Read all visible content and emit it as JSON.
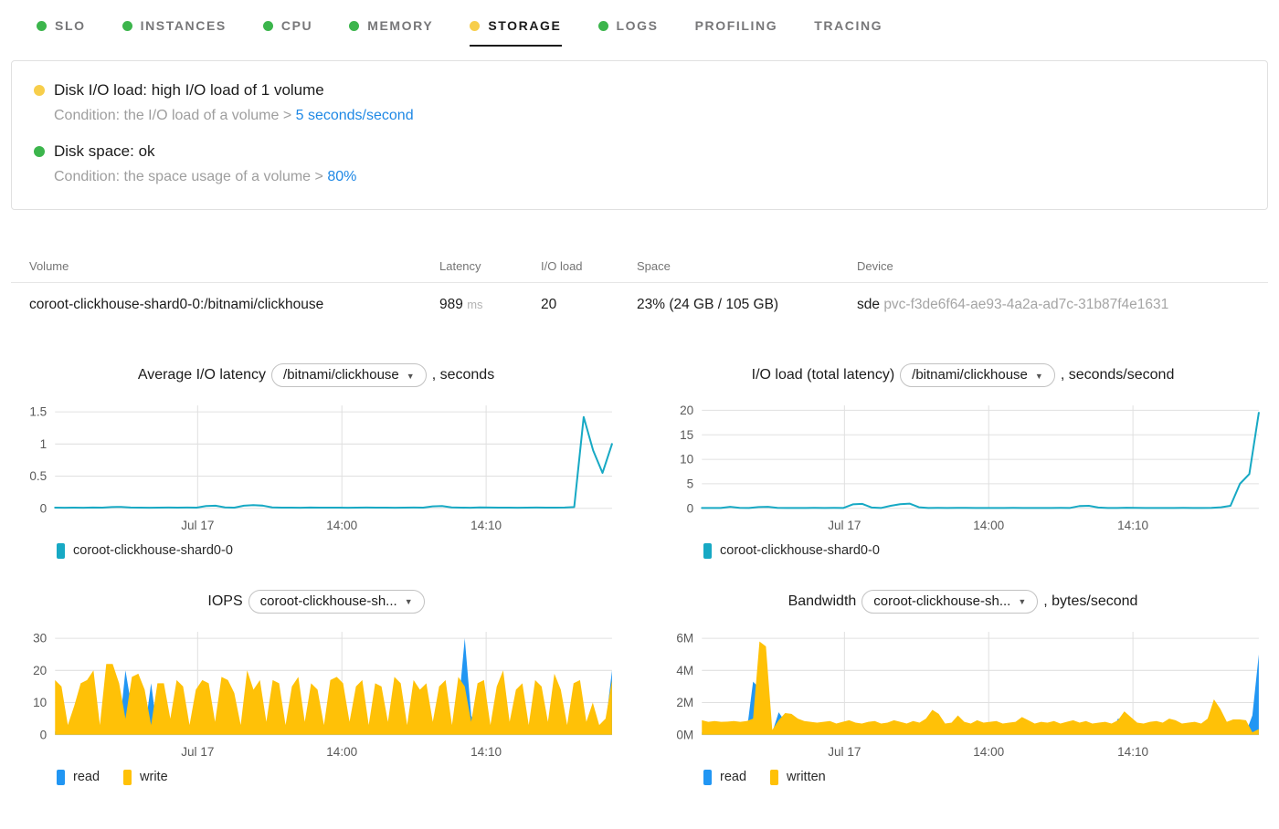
{
  "tabs": {
    "items": [
      {
        "label": "SLO",
        "dot": "#3CB54C",
        "active": false
      },
      {
        "label": "INSTANCES",
        "dot": "#3CB54C",
        "active": false
      },
      {
        "label": "CPU",
        "dot": "#3CB54C",
        "active": false
      },
      {
        "label": "MEMORY",
        "dot": "#3CB54C",
        "active": false
      },
      {
        "label": "STORAGE",
        "dot": "#F7CE4B",
        "active": true
      },
      {
        "label": "LOGS",
        "dot": "#3CB54C",
        "active": false
      },
      {
        "label": "PROFILING",
        "dot": null,
        "active": false
      },
      {
        "label": "TRACING",
        "dot": null,
        "active": false
      }
    ]
  },
  "alerts": {
    "items": [
      {
        "severity_color": "#F7CE4B",
        "title": "Disk I/O load: high I/O load of 1 volume",
        "condition_text": "Condition: the I/O load of a volume >",
        "threshold": "5 seconds/second"
      },
      {
        "severity_color": "#3CB54C",
        "title": "Disk space: ok",
        "condition_text": "Condition: the space usage of a volume >",
        "threshold": "80%"
      }
    ]
  },
  "table": {
    "columns": [
      "Volume",
      "Latency",
      "I/O load",
      "Space",
      "Device"
    ],
    "rows": [
      {
        "volume": "coroot-clickhouse-shard0-0:/bitnami/clickhouse",
        "latency_value": "989",
        "latency_unit": "ms",
        "io_load": "20",
        "space": "23% (24 GB / 105 GB)",
        "device": "sde",
        "device_id": "pvc-f3de6f64-ae93-4a2a-ad7c-31b87f4e1631"
      }
    ]
  },
  "chart_data": [
    {
      "type": "line",
      "title_prefix": "Average I/O latency",
      "selector_value": "/bitnami/clickhouse",
      "title_suffix": ", seconds",
      "ylim": [
        0,
        1.6
      ],
      "y_ticks": [
        {
          "v": 0,
          "label": "0"
        },
        {
          "v": 0.5,
          "label": "0.5"
        },
        {
          "v": 1,
          "label": "1"
        },
        {
          "v": 1.5,
          "label": "1.5"
        }
      ],
      "x_ticks": [
        {
          "pos": 0.256,
          "label": "Jul 17"
        },
        {
          "pos": 0.515,
          "label": "14:00"
        },
        {
          "pos": 0.774,
          "label": "14:10"
        }
      ],
      "grid": true,
      "legend_position": "bottom-left",
      "series": [
        {
          "name": "coroot-clickhouse-shard0-0",
          "kind": "line",
          "color": "#17A9C4",
          "values": [
            0.01,
            0.008,
            0.01,
            0.009,
            0.012,
            0.01,
            0.02,
            0.022,
            0.012,
            0.01,
            0.009,
            0.01,
            0.011,
            0.01,
            0.012,
            0.01,
            0.035,
            0.04,
            0.015,
            0.01,
            0.04,
            0.048,
            0.042,
            0.015,
            0.01,
            0.01,
            0.009,
            0.011,
            0.01,
            0.01,
            0.01,
            0.009,
            0.01,
            0.012,
            0.01,
            0.01,
            0.009,
            0.01,
            0.011,
            0.01,
            0.03,
            0.035,
            0.015,
            0.01,
            0.009,
            0.015,
            0.012,
            0.01,
            0.01,
            0.009,
            0.01,
            0.011,
            0.01,
            0.01,
            0.012,
            0.02,
            1.42,
            0.9,
            0.55,
            1.0
          ]
        }
      ],
      "legend": [
        {
          "label": "coroot-clickhouse-shard0-0",
          "color": "#17A9C4"
        }
      ]
    },
    {
      "type": "line",
      "title_prefix": "I/O load (total latency)",
      "selector_value": "/bitnami/clickhouse",
      "title_suffix": ", seconds/second",
      "ylim": [
        0,
        21
      ],
      "y_ticks": [
        {
          "v": 0,
          "label": "0"
        },
        {
          "v": 5,
          "label": "5"
        },
        {
          "v": 10,
          "label": "10"
        },
        {
          "v": 15,
          "label": "15"
        },
        {
          "v": 20,
          "label": "20"
        }
      ],
      "x_ticks": [
        {
          "pos": 0.256,
          "label": "Jul 17"
        },
        {
          "pos": 0.515,
          "label": "14:00"
        },
        {
          "pos": 0.774,
          "label": "14:10"
        }
      ],
      "grid": true,
      "legend_position": "bottom-left",
      "series": [
        {
          "name": "coroot-clickhouse-shard0-0",
          "kind": "line",
          "color": "#17A9C4",
          "values": [
            0.08,
            0.06,
            0.08,
            0.3,
            0.1,
            0.08,
            0.25,
            0.3,
            0.1,
            0.08,
            0.07,
            0.08,
            0.1,
            0.08,
            0.09,
            0.08,
            0.8,
            0.9,
            0.15,
            0.08,
            0.5,
            0.85,
            0.95,
            0.2,
            0.08,
            0.09,
            0.08,
            0.1,
            0.09,
            0.08,
            0.08,
            0.07,
            0.08,
            0.1,
            0.08,
            0.08,
            0.07,
            0.08,
            0.09,
            0.08,
            0.45,
            0.5,
            0.15,
            0.08,
            0.07,
            0.12,
            0.1,
            0.08,
            0.08,
            0.07,
            0.08,
            0.09,
            0.08,
            0.08,
            0.1,
            0.2,
            0.5,
            5.0,
            7.0,
            19.5
          ]
        }
      ],
      "legend": [
        {
          "label": "coroot-clickhouse-shard0-0",
          "color": "#17A9C4"
        }
      ]
    },
    {
      "type": "area",
      "title_prefix": "IOPS",
      "selector_value": "coroot-clickhouse-sh...",
      "title_suffix": "",
      "ylim": [
        0,
        32
      ],
      "y_ticks": [
        {
          "v": 0,
          "label": "0"
        },
        {
          "v": 10,
          "label": "10"
        },
        {
          "v": 20,
          "label": "20"
        },
        {
          "v": 30,
          "label": "30"
        }
      ],
      "x_ticks": [
        {
          "pos": 0.256,
          "label": "Jul 17"
        },
        {
          "pos": 0.515,
          "label": "14:00"
        },
        {
          "pos": 0.774,
          "label": "14:10"
        }
      ],
      "grid": true,
      "legend_position": "bottom-left",
      "series": [
        {
          "name": "read",
          "kind": "area",
          "color": "#2196F3",
          "values": [
            1,
            1,
            1,
            2,
            1,
            1,
            1,
            1,
            1,
            1,
            1,
            20,
            8,
            1,
            1,
            16,
            1,
            1,
            1,
            1,
            1,
            1,
            1,
            1,
            1,
            1,
            1,
            1,
            1,
            1,
            1,
            1,
            1,
            1,
            1,
            1,
            1,
            1,
            1,
            1,
            1,
            1,
            1,
            1,
            1,
            1,
            1,
            1,
            1,
            1,
            1,
            1,
            1,
            1,
            1,
            1,
            1,
            1,
            1,
            1,
            1,
            1,
            1,
            8,
            30,
            6,
            1,
            1,
            1,
            1,
            1,
            1,
            1,
            1,
            1,
            1,
            1,
            1,
            1,
            1,
            1,
            1,
            1,
            1,
            1,
            1,
            3,
            20
          ]
        },
        {
          "name": "write",
          "kind": "area",
          "color": "#FFC107",
          "values": [
            17,
            15,
            3,
            9,
            16,
            17,
            20,
            3,
            22,
            22,
            16,
            5,
            18,
            19,
            14,
            3,
            16,
            16,
            5,
            17,
            15,
            3,
            14,
            17,
            16,
            4,
            18,
            17,
            13,
            3,
            20,
            14,
            17,
            4,
            17,
            16,
            3,
            15,
            18,
            4,
            16,
            14,
            3,
            17,
            18,
            16,
            4,
            15,
            17,
            3,
            16,
            15,
            4,
            18,
            16,
            3,
            17,
            14,
            16,
            4,
            15,
            17,
            3,
            18,
            15,
            4,
            16,
            17,
            3,
            15,
            20,
            4,
            14,
            16,
            3,
            17,
            15,
            4,
            19,
            14,
            3,
            16,
            17,
            4,
            10,
            3,
            5,
            17
          ]
        }
      ],
      "legend": [
        {
          "label": "read",
          "color": "#2196F3"
        },
        {
          "label": "write",
          "color": "#FFC107"
        }
      ]
    },
    {
      "type": "area",
      "title_prefix": "Bandwidth",
      "selector_value": "coroot-clickhouse-sh...",
      "title_suffix": ", bytes/second",
      "ylim": [
        0,
        6.4
      ],
      "y_ticks": [
        {
          "v": 0,
          "label": "0M"
        },
        {
          "v": 2,
          "label": "2M"
        },
        {
          "v": 4,
          "label": "4M"
        },
        {
          "v": 6,
          "label": "6M"
        }
      ],
      "x_ticks": [
        {
          "pos": 0.256,
          "label": "Jul 17"
        },
        {
          "pos": 0.515,
          "label": "14:00"
        },
        {
          "pos": 0.774,
          "label": "14:10"
        }
      ],
      "grid": true,
      "legend_position": "bottom-left",
      "series": [
        {
          "name": "read",
          "kind": "area",
          "color": "#2196F3",
          "values": [
            0.15,
            0.12,
            0.15,
            0.2,
            0.15,
            0.12,
            0.15,
            0.18,
            3.3,
            2.9,
            0.4,
            0.15,
            1.4,
            0.8,
            0.2,
            0.15,
            0.12,
            0.15,
            0.12,
            0.15,
            0.15,
            0.12,
            0.15,
            0.15,
            0.12,
            0.15,
            0.12,
            0.15,
            0.12,
            0.15,
            0.15,
            0.12,
            0.15,
            0.12,
            0.15,
            0.15,
            0.12,
            0.15,
            0.12,
            0.15,
            0.15,
            0.12,
            0.15,
            0.12,
            0.15,
            0.15,
            0.12,
            0.15,
            0.12,
            0.15,
            0.15,
            0.12,
            0.15,
            0.12,
            0.15,
            0.15,
            0.12,
            0.15,
            0.12,
            0.15,
            0.15,
            0.12,
            0.15,
            0.12,
            0.15,
            1.0,
            0.9,
            0.15,
            0.12,
            0.15,
            0.15,
            0.12,
            0.15,
            0.12,
            0.15,
            0.15,
            0.12,
            0.15,
            0.12,
            0.15,
            0.15,
            0.12,
            0.15,
            0.12,
            0.15,
            0.15,
            1.2,
            5.0
          ]
        },
        {
          "name": "written",
          "kind": "area",
          "color": "#FFC107",
          "values": [
            0.9,
            0.8,
            0.85,
            0.8,
            0.82,
            0.85,
            0.8,
            0.85,
            1.0,
            5.8,
            5.5,
            0.3,
            0.9,
            1.35,
            1.3,
            1.0,
            0.85,
            0.8,
            0.75,
            0.8,
            0.85,
            0.7,
            0.8,
            0.9,
            0.75,
            0.7,
            0.8,
            0.85,
            0.7,
            0.75,
            0.9,
            0.8,
            0.7,
            0.85,
            0.75,
            1.0,
            1.55,
            1.3,
            0.7,
            0.75,
            1.2,
            0.8,
            0.7,
            0.9,
            0.75,
            0.8,
            0.85,
            0.7,
            0.75,
            0.8,
            1.1,
            0.9,
            0.7,
            0.8,
            0.75,
            0.85,
            0.7,
            0.8,
            0.9,
            0.75,
            0.85,
            0.7,
            0.75,
            0.8,
            0.7,
            0.9,
            1.45,
            1.1,
            0.75,
            0.7,
            0.8,
            0.85,
            0.75,
            1.0,
            0.9,
            0.7,
            0.75,
            0.8,
            0.7,
            1.0,
            2.2,
            1.6,
            0.8,
            0.95,
            0.95,
            0.9,
            0.15,
            0.35
          ]
        }
      ],
      "legend": [
        {
          "label": "read",
          "color": "#2196F3"
        },
        {
          "label": "written",
          "color": "#FFC107"
        }
      ]
    }
  ],
  "colors": {
    "ok": "#3CB54C",
    "warning": "#F7CE4B",
    "link": "#1e88e5",
    "grid": "#e0e0e0"
  }
}
